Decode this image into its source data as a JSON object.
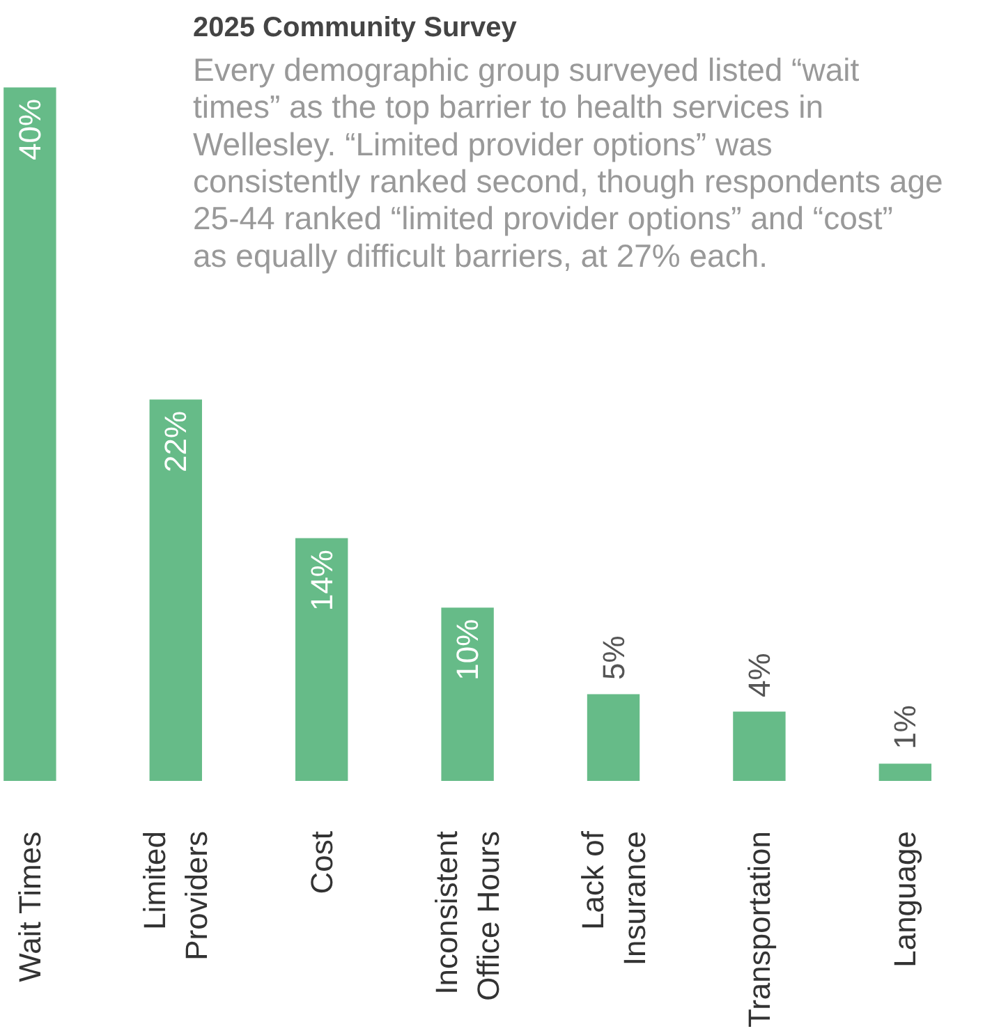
{
  "chart_data": {
    "type": "bar",
    "title": "2025 Community Survey",
    "subtitle": "Every demographic group surveyed listed “wait times” as the top barrier to health services in Wellesley. “Limited provider options” was consistently ranked second, though respondents age 25-44 ranked “limited provider options” and “cost” as equally difficult barriers, at 27% each.",
    "categories": [
      "Wait Times",
      "Limited\nProviders",
      "Cost",
      "Inconsistent\nOffice Hours",
      "Lack of\nInsurance",
      "Transportation",
      "Language"
    ],
    "values": [
      40,
      22,
      14,
      10,
      5,
      4,
      1
    ],
    "value_labels": [
      "40%",
      "22%",
      "14%",
      "10%",
      "5%",
      "4%",
      "1%"
    ],
    "color": "#66bb88",
    "grid": false
  }
}
